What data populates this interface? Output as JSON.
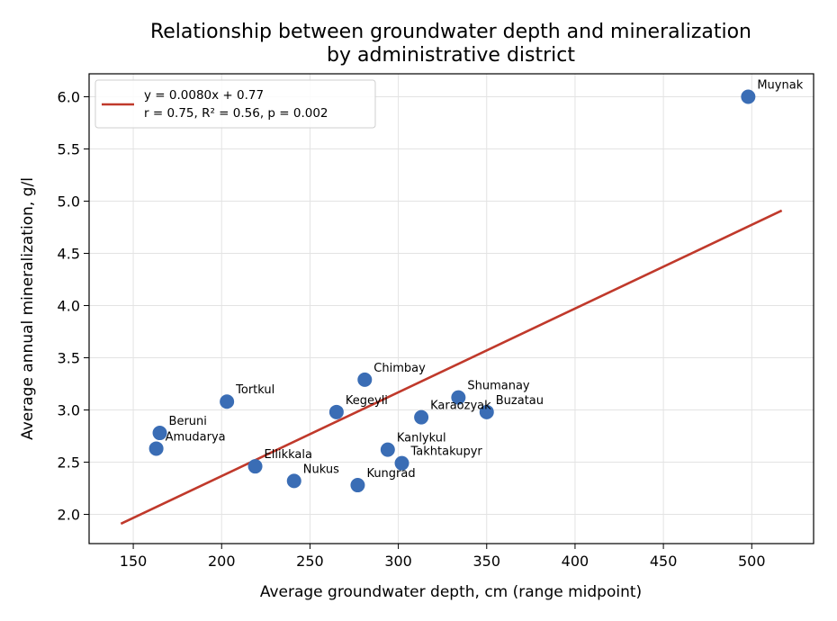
{
  "chart_data": {
    "type": "scatter",
    "title": [
      "Relationship between groundwater depth and mineralization",
      "by administrative district"
    ],
    "xlabel": "Average groundwater depth, cm (range midpoint)",
    "ylabel": "Average annual mineralization, g/l",
    "xlim": [
      125,
      535
    ],
    "ylim": [
      1.72,
      6.22
    ],
    "xticks": [
      150,
      200,
      250,
      300,
      350,
      400,
      450,
      500
    ],
    "yticks": [
      2.0,
      2.5,
      3.0,
      3.5,
      4.0,
      4.5,
      5.0,
      5.5,
      6.0
    ],
    "grid": true,
    "legend_position": "top-left",
    "points": [
      {
        "label": "Muynak",
        "x": 498,
        "y": 6.0
      },
      {
        "label": "Chimbay",
        "x": 281,
        "y": 3.29
      },
      {
        "label": "Shumanay",
        "x": 334,
        "y": 3.12
      },
      {
        "label": "Tortkul",
        "x": 203,
        "y": 3.08
      },
      {
        "label": "Kegeyli",
        "x": 265,
        "y": 2.98
      },
      {
        "label": "Buzatau",
        "x": 350,
        "y": 2.98
      },
      {
        "label": "Karaozyak",
        "x": 313,
        "y": 2.93
      },
      {
        "label": "Beruni",
        "x": 165,
        "y": 2.78
      },
      {
        "label": "Amudarya",
        "x": 163,
        "y": 2.63
      },
      {
        "label": "Kanlykul",
        "x": 294,
        "y": 2.62
      },
      {
        "label": "Takhtakupyr",
        "x": 302,
        "y": 2.49
      },
      {
        "label": "Ellikkala",
        "x": 219,
        "y": 2.46
      },
      {
        "label": "Nukus",
        "x": 241,
        "y": 2.32
      },
      {
        "label": "Kungrad",
        "x": 277,
        "y": 2.28
      }
    ],
    "fit_line": {
      "x_range": [
        143,
        517
      ],
      "y_range": [
        1.91,
        4.91
      ],
      "legend": [
        "y = 0.0080x + 0.77",
        "r = 0.75, R² = 0.56, p = 0.002"
      ],
      "color": "#c0392b"
    },
    "point_color": "#3a6db5"
  }
}
